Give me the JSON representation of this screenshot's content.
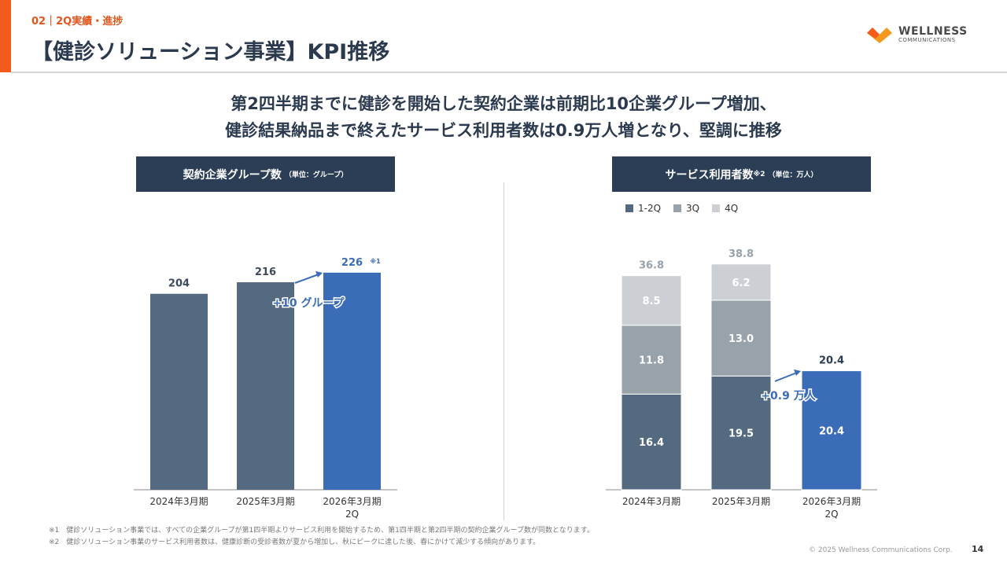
{
  "header": {
    "section": "02｜2Q実績・進捗",
    "title": "【健診ソリューション事業】KPI推移",
    "logo_text": "WELLNESS",
    "logo_sub": "COMMUNICATIONS"
  },
  "headline": {
    "line1": "第2四半期までに健診を開始した契約企業は前期比10企業グループ増加、",
    "line2": "健診結果納品まで終えたサービス利用者数は0.9万人増となり、堅調に推移"
  },
  "left_panel": {
    "title": "契約企業グループ数",
    "unit": "（単位：グループ）"
  },
  "right_panel": {
    "title": "サービス利用者数",
    "title_sup": "※2",
    "unit": "（単位：万人）"
  },
  "chart_data": [
    {
      "type": "bar",
      "title": "契約企業グループ数",
      "categories": [
        "2024年3月期",
        "2025年3月期",
        "2026年3月期 2Q"
      ],
      "values": [
        204,
        216,
        226
      ],
      "value_labels": [
        "204",
        "216",
        "226"
      ],
      "note_mark": "※1",
      "annotation": "+10 グループ",
      "colors": [
        "#546a80",
        "#546a80",
        "#3a6cb8"
      ]
    },
    {
      "type": "bar",
      "stacked": true,
      "title": "サービス利用者数",
      "categories": [
        "2024年3月期",
        "2025年3月期",
        "2026年3月期 2Q"
      ],
      "series": [
        {
          "name": "1-2Q",
          "values": [
            16.4,
            19.5,
            20.4
          ],
          "color": "#546a80"
        },
        {
          "name": "3Q",
          "values": [
            11.8,
            13.0,
            null
          ],
          "color": "#98a2ab"
        },
        {
          "name": "4Q",
          "values": [
            8.5,
            6.2,
            null
          ],
          "color": "#ccd0d4"
        }
      ],
      "totals": [
        36.8,
        38.8,
        20.4
      ],
      "annotation": "+0.9 万人",
      "highlight_color": "#3a6cb8"
    }
  ],
  "footnotes": [
    "※1　健診ソリューション事業では、すべての企業グループが第1四半期よりサービス利用を開始するため、第1四半期と第2四半期の契約企業グループ数が同数となります。",
    "※2　健診ソリューション事業のサービス利用者数は、健康診断の受診者数が夏から増加し、秋にピークに達した後、春にかけて減少する傾向があります。"
  ],
  "footer": {
    "copyright": "© 2025 Wellness Communications Corp.",
    "page": "14"
  }
}
